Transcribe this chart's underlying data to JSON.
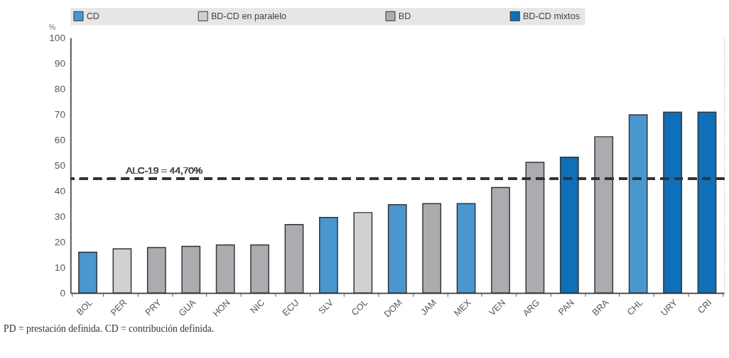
{
  "chart_data": {
    "type": "bar",
    "categories": [
      "BOL",
      "PER",
      "PRY",
      "GUA",
      "HON",
      "NIC",
      "ECU",
      "SLV",
      "COL",
      "DOM",
      "JAM",
      "MEX",
      "VEN",
      "ARG",
      "PAN",
      "BRA",
      "CHL",
      "URY",
      "CRI"
    ],
    "ylabel": "%",
    "series": [
      {
        "name": "CD",
        "color": "#4a96cf",
        "values": [
          16,
          null,
          null,
          null,
          null,
          null,
          null,
          29.6,
          null,
          34.6,
          null,
          35,
          null,
          null,
          null,
          null,
          69.8,
          null,
          null
        ]
      },
      {
        "name": "BD-CD en paralelo",
        "color": "#d0d1d3",
        "values": [
          null,
          17.3,
          null,
          null,
          null,
          null,
          null,
          null,
          31.5,
          null,
          null,
          null,
          null,
          null,
          null,
          null,
          null,
          null,
          null
        ]
      },
      {
        "name": "BD",
        "color": "#abacaf",
        "values": [
          null,
          null,
          17.8,
          18.3,
          18.8,
          18.8,
          26.8,
          null,
          null,
          null,
          35,
          null,
          41.3,
          51.2,
          null,
          61.2,
          null,
          null,
          null
        ]
      },
      {
        "name": "BD-CD  mixtos",
        "color": "#0f6fb8",
        "values": [
          null,
          null,
          null,
          null,
          null,
          null,
          null,
          null,
          null,
          null,
          null,
          null,
          null,
          null,
          53.2,
          null,
          null,
          70.8,
          70.8
        ]
      }
    ],
    "ylim": [
      0,
      100
    ],
    "yticks": [
      0,
      10,
      20,
      30,
      40,
      50,
      60,
      70,
      80,
      90,
      100
    ],
    "grid": true,
    "legend": "top",
    "ref_lines": [
      {
        "axis": "y",
        "value": 44.7,
        "label": "ALC-19 = 44,70%",
        "color": "#333333",
        "line_style": "dashed"
      }
    ],
    "annotations": [
      "PD = prestación definida. CD = contribución definida."
    ]
  }
}
